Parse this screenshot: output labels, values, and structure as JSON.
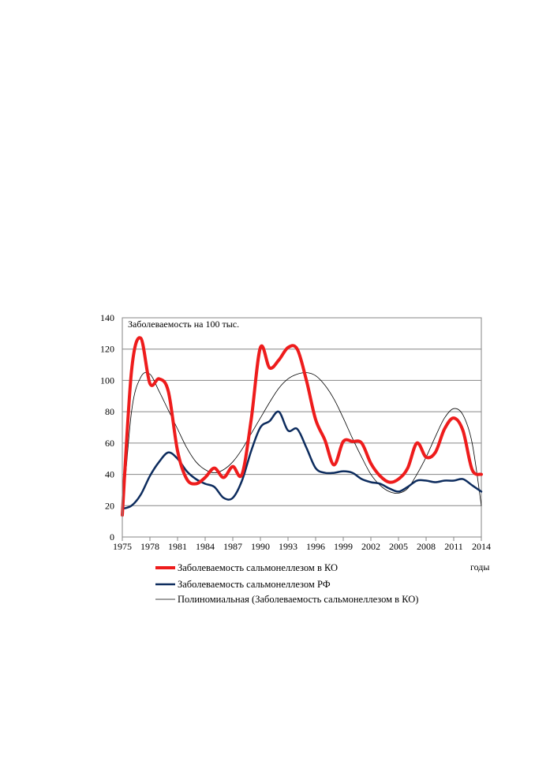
{
  "chart_data": {
    "type": "line",
    "annotation": "Заболеваемость на 100 тыс.",
    "xlabel": "годы",
    "ylim": [
      0,
      140
    ],
    "xlim": [
      1975,
      2014
    ],
    "y_ticks": [
      0,
      20,
      40,
      60,
      80,
      100,
      120,
      140
    ],
    "x_ticks": [
      1975,
      1978,
      1981,
      1984,
      1987,
      1990,
      1993,
      1996,
      1999,
      2002,
      2005,
      2008,
      2011,
      2014
    ],
    "grid": "horizontal",
    "legend_placement": "bottom",
    "series": [
      {
        "name": "Заболеваемость сальмонеллезом в КО",
        "color": "#ee1c1c",
        "style": "thick",
        "x": [
          1975,
          1976,
          1977,
          1978,
          1979,
          1980,
          1981,
          1982,
          1983,
          1984,
          1985,
          1986,
          1987,
          1988,
          1989,
          1990,
          1991,
          1992,
          1993,
          1994,
          1995,
          1996,
          1997,
          1998,
          1999,
          2000,
          2001,
          2002,
          2003,
          2004,
          2005,
          2006,
          2007,
          2008,
          2009,
          2010,
          2011,
          2012,
          2013,
          2014
        ],
        "y": [
          14,
          106,
          127,
          98,
          101,
          93,
          55,
          37,
          34,
          38,
          44,
          38,
          45,
          40,
          75,
          121,
          108,
          113,
          121,
          120,
          100,
          75,
          62,
          46,
          61,
          61,
          60,
          47,
          39,
          35,
          37,
          44,
          60,
          51,
          54,
          69,
          76,
          68,
          43,
          40
        ]
      },
      {
        "name": "Заболеваемость сальмонеллезом РФ",
        "color": "#0d2c5e",
        "style": "medium",
        "x": [
          1975,
          1976,
          1977,
          1978,
          1979,
          1980,
          1981,
          1982,
          1983,
          1984,
          1985,
          1986,
          1987,
          1988,
          1989,
          1990,
          1991,
          1992,
          1993,
          1994,
          1995,
          1996,
          1997,
          1998,
          1999,
          2000,
          2001,
          2002,
          2003,
          2004,
          2005,
          2006,
          2007,
          2008,
          2009,
          2010,
          2011,
          2012,
          2013,
          2014
        ],
        "y": [
          18,
          20,
          27,
          39,
          48,
          54,
          50,
          42,
          37,
          34,
          32,
          25,
          25,
          36,
          55,
          70,
          74,
          80,
          68,
          69,
          57,
          44,
          41,
          41,
          42,
          41,
          37,
          35,
          34,
          31,
          29,
          32,
          36,
          36,
          35,
          36,
          36,
          37,
          33,
          29
        ]
      },
      {
        "name": "Полиномиальная (Заболеваемость сальмонеллезом в КО)",
        "color": "#000000",
        "style": "thin",
        "x": [
          1975,
          1976,
          1977,
          1978,
          1979,
          1980,
          1981,
          1982,
          1983,
          1984,
          1985,
          1986,
          1987,
          1988,
          1989,
          1990,
          1991,
          1992,
          1993,
          1994,
          1995,
          1996,
          1997,
          1998,
          1999,
          2000,
          2001,
          2002,
          2003,
          2004,
          2005,
          2006,
          2007,
          2008,
          2009,
          2010,
          2011,
          2012,
          2013,
          2014
        ],
        "y": [
          12,
          80,
          102,
          104,
          93,
          81,
          69,
          57,
          48,
          43,
          41,
          43,
          48,
          56,
          66,
          76,
          86,
          95,
          101,
          104,
          105,
          103,
          97,
          88,
          76,
          63,
          51,
          40,
          33,
          29,
          28,
          31,
          40,
          51,
          64,
          76,
          82,
          78,
          60,
          20
        ]
      }
    ]
  }
}
